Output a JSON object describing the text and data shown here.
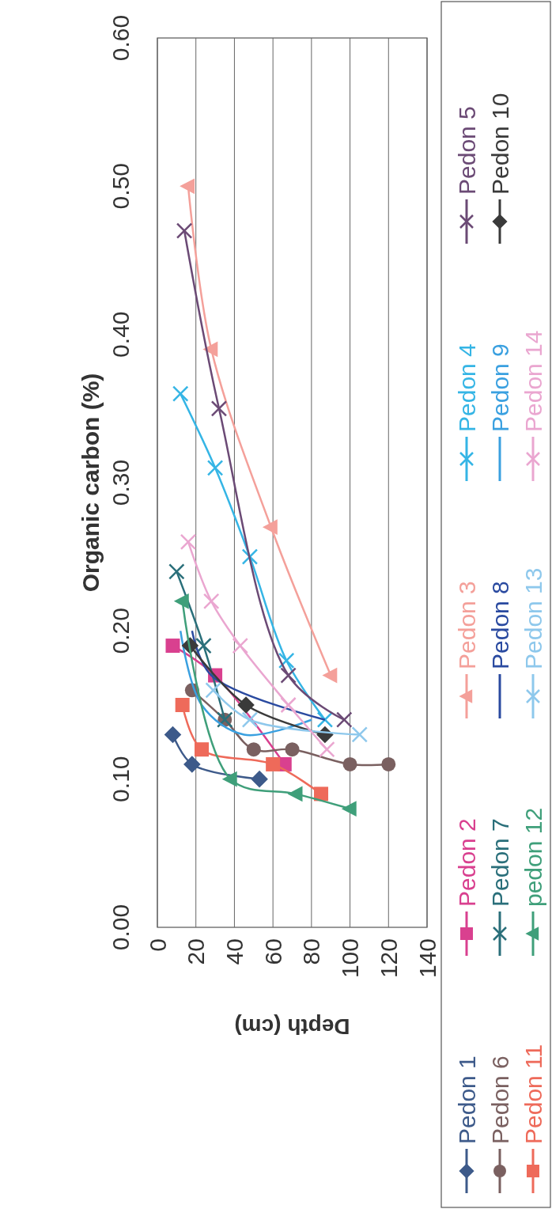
{
  "chart_data": {
    "type": "line",
    "xlabel": "Depth (cm)",
    "ylabel": "Organic carbon (%)",
    "ylim": [
      0,
      0.6
    ],
    "yticks": [
      {
        "value": 0,
        "label": "0.00"
      },
      {
        "value": 0.1,
        "label": "0.10"
      },
      {
        "value": 0.2,
        "label": "0.20"
      },
      {
        "value": 0.3,
        "label": "0.30"
      },
      {
        "value": 0.4,
        "label": "0.40"
      },
      {
        "value": 0.5,
        "label": "0.50"
      },
      {
        "value": 0.6,
        "label": "0.60"
      }
    ],
    "xlim": [
      0,
      140
    ],
    "xticks": [
      0,
      20,
      40,
      60,
      80,
      100,
      120,
      140
    ],
    "grid": "x",
    "legend": "right",
    "series": [
      {
        "name": "Pedon 1",
        "color": "#3d5a8a",
        "marker": "diamond",
        "values": [
          0.13,
          0.11,
          0.1
        ],
        "x": [
          8,
          18,
          53
        ]
      },
      {
        "name": "Pedon 2",
        "color": "#d9408f",
        "marker": "square",
        "values": [
          0.19,
          0.17,
          0.11
        ],
        "x": [
          8,
          30,
          66
        ]
      },
      {
        "name": "Pedon 3",
        "color": "#f4a09a",
        "marker": "triangle",
        "values": [
          0.5,
          0.39,
          0.27,
          0.17
        ],
        "x": [
          16,
          28,
          59,
          90
        ]
      },
      {
        "name": "Pedon 4",
        "color": "#35b5e5",
        "marker": "cross",
        "values": [
          0.36,
          0.31,
          0.25,
          0.18,
          0.14
        ],
        "x": [
          12,
          30,
          48,
          67,
          87
        ]
      },
      {
        "name": "Pedon 5",
        "color": "#6b4a75",
        "marker": "cross",
        "values": [
          0.47,
          0.35,
          0.17,
          0.14
        ],
        "x": [
          14,
          32,
          68,
          97
        ]
      },
      {
        "name": "Pedon 6",
        "color": "#7a6060",
        "marker": "circle",
        "values": [
          0.16,
          0.14,
          0.12,
          0.12,
          0.11,
          0.11
        ],
        "x": [
          18,
          35,
          50,
          70,
          100,
          120
        ]
      },
      {
        "name": "Pedon 7",
        "color": "#2a6f7a",
        "marker": "cross",
        "values": [
          0.24,
          0.19,
          0.14
        ],
        "x": [
          10,
          24,
          35
        ]
      },
      {
        "name": "Pedon 8",
        "color": "#2a4aa0",
        "marker": "none",
        "values": [
          0.2,
          0.17,
          0.14
        ],
        "x": [
          18,
          28,
          87
        ]
      },
      {
        "name": "Pedon 9",
        "color": "#3aa0e0",
        "marker": "none",
        "values": [
          0.2,
          0.15,
          0.13,
          0.14
        ],
        "x": [
          12,
          23,
          45,
          80
        ]
      },
      {
        "name": "Pedon 10",
        "color": "#3a3a3a",
        "marker": "diamond",
        "values": [
          0.19,
          0.15,
          0.13
        ],
        "x": [
          17,
          46,
          87
        ]
      },
      {
        "name": "Pedon 11",
        "color": "#ee6a5a",
        "marker": "square",
        "values": [
          0.15,
          0.12,
          0.11,
          0.09
        ],
        "x": [
          13,
          23,
          60,
          85
        ]
      },
      {
        "name": "pedon 12",
        "color": "#3f9f7a",
        "marker": "triangle",
        "values": [
          0.22,
          0.1,
          0.09,
          0.08
        ],
        "x": [
          13,
          38,
          72,
          100
        ]
      },
      {
        "name": "Pedon 13",
        "color": "#8ec8ec",
        "marker": "cross",
        "values": [
          0.16,
          0.14,
          0.13
        ],
        "x": [
          29,
          48,
          105
        ]
      },
      {
        "name": "Pedon 14",
        "color": "#eaa6d0",
        "marker": "cross",
        "values": [
          0.26,
          0.22,
          0.19,
          0.15,
          0.12
        ],
        "x": [
          16,
          28,
          43,
          68,
          88
        ]
      }
    ]
  }
}
